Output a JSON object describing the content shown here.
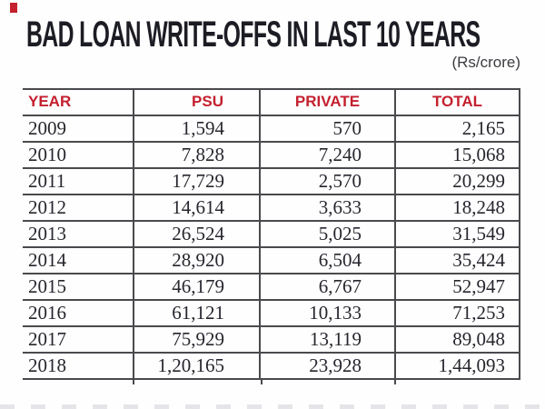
{
  "title": "BAD LOAN WRITE-OFFS IN LAST 10 YEARS",
  "unit_label": "(Rs/crore)",
  "colors": {
    "header_red": "#c4202e",
    "title_text": "#1c1c24",
    "body_text": "#26262e",
    "grid_line": "#4a4a4e",
    "corner_mark": "#c4202e"
  },
  "chart_data": {
    "type": "table",
    "title": "BAD LOAN WRITE-OFFS IN LAST 10 YEARS",
    "unit": "Rs/crore",
    "columns": [
      "YEAR",
      "PSU",
      "PRIVATE",
      "TOTAL"
    ],
    "rows": [
      [
        "2009",
        "1,594",
        "570",
        "2,165"
      ],
      [
        "2010",
        "7,828",
        "7,240",
        "15,068"
      ],
      [
        "2011",
        "17,729",
        "2,570",
        "20,299"
      ],
      [
        "2012",
        "14,614",
        "3,633",
        "18,248"
      ],
      [
        "2013",
        "26,524",
        "5,025",
        "31,549"
      ],
      [
        "2014",
        "28,920",
        "6,504",
        "35,424"
      ],
      [
        "2015",
        "46,179",
        "6,767",
        "52,947"
      ],
      [
        "2016",
        "61,121",
        "10,133",
        "71,253"
      ],
      [
        "2017",
        "75,929",
        "13,119",
        "89,048"
      ],
      [
        "2018",
        "1,20,165",
        "23,928",
        "1,44,093"
      ]
    ],
    "legend_position": "none",
    "grid": true
  }
}
